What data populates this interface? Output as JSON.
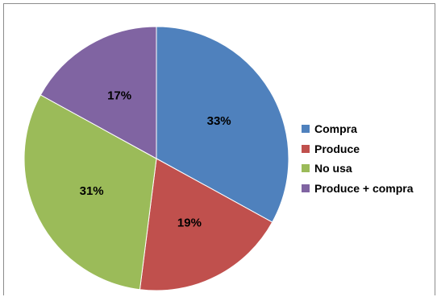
{
  "chart_data": {
    "type": "pie",
    "title": "",
    "categories": [
      "Compra",
      "Produce",
      "No usa",
      "Produce + compra"
    ],
    "values": [
      33,
      19,
      31,
      17
    ],
    "value_labels": [
      "33%",
      "19%",
      "31%",
      "17%"
    ],
    "unit": "%",
    "colors": [
      "#4f81bd",
      "#c0504d",
      "#9bbb59",
      "#8064a2"
    ],
    "start_angle": "12 o'clock",
    "direction": "clockwise",
    "legend": {
      "placement": "right",
      "items": [
        {
          "label": "Compra",
          "color": "#4f81bd"
        },
        {
          "label": "Produce",
          "color": "#c0504d"
        },
        {
          "label": "No usa",
          "color": "#9bbb59"
        },
        {
          "label": "Produce + compra",
          "color": "#8064a2"
        }
      ]
    }
  }
}
